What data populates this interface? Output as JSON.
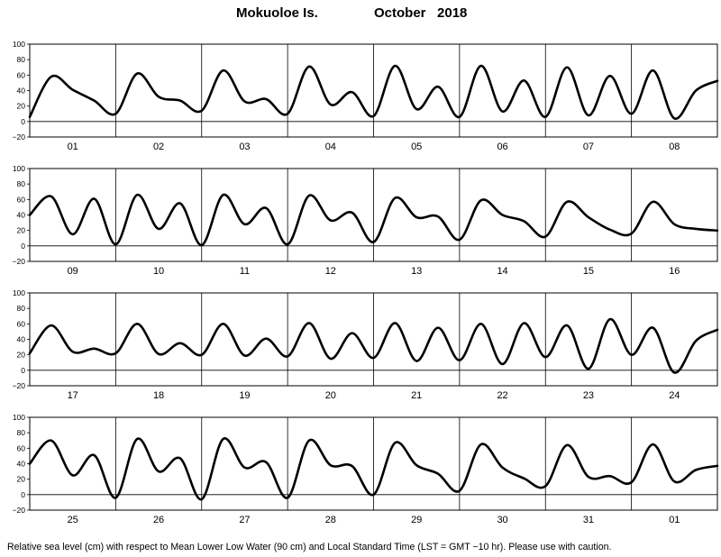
{
  "title": {
    "station": "Mokuoloe Is.",
    "month": "October",
    "year": "2018"
  },
  "footer": "Relative sea level (cm) with respect to Mean Lower Low Water (90 cm) and Local Standard Time (LST = GMT −10 hr). Please use with caution.",
  "chart_data": {
    "type": "line",
    "ylim": [
      -20,
      100
    ],
    "yticks": [
      "100",
      "80",
      "60",
      "40",
      "20",
      "0",
      "−20"
    ],
    "grid": "vertical lines at day boundaries and horizontal line at 0",
    "panels": [
      {
        "days": [
          "01",
          "02",
          "03",
          "04",
          "05",
          "06",
          "07",
          "08"
        ],
        "x_days": [
          0,
          0.25,
          0.5,
          0.75,
          1,
          1.25,
          1.5,
          1.75,
          2,
          2.25,
          2.5,
          2.75,
          3,
          3.25,
          3.5,
          3.75,
          4,
          4.25,
          4.5,
          4.75,
          5,
          5.25,
          5.5,
          5.75,
          6,
          6.25,
          6.5,
          6.75,
          7,
          7.25,
          7.5,
          7.75,
          8
        ],
        "values": [
          6,
          58,
          41,
          27,
          10,
          62,
          32,
          27,
          14,
          66,
          26,
          29,
          10,
          71,
          22,
          38,
          7,
          72,
          16,
          45,
          6,
          72,
          13,
          53,
          6,
          70,
          8,
          59,
          10,
          66,
          4,
          40,
          null
        ]
      },
      {
        "days": [
          "09",
          "10",
          "11",
          "12",
          "13",
          "14",
          "15",
          "16"
        ],
        "x_days": [
          0,
          0.25,
          0.5,
          0.75,
          1,
          1.25,
          1.5,
          1.75,
          2,
          2.25,
          2.5,
          2.75,
          3,
          3.25,
          3.5,
          3.75,
          4,
          4.25,
          4.5,
          4.75,
          5,
          5.25,
          5.5,
          5.75,
          6,
          6.25,
          6.5,
          6.75,
          7,
          7.25,
          7.5,
          7.75,
          8
        ],
        "values": [
          40,
          64,
          15,
          61,
          2,
          66,
          22,
          55,
          1,
          66,
          28,
          49,
          2,
          65,
          33,
          43,
          5,
          62,
          37,
          38,
          8,
          59,
          40,
          32,
          12,
          57,
          37,
          21,
          16,
          57,
          28,
          22,
          null
        ]
      },
      {
        "days": [
          "17",
          "18",
          "19",
          "20",
          "21",
          "22",
          "23",
          "24"
        ],
        "x_days": [
          0,
          0.25,
          0.5,
          0.75,
          1,
          1.25,
          1.5,
          1.75,
          2,
          2.25,
          2.5,
          2.75,
          3,
          3.25,
          3.5,
          3.75,
          4,
          4.25,
          4.5,
          4.75,
          5,
          5.25,
          5.5,
          5.75,
          6,
          6.25,
          6.5,
          6.75,
          7,
          7.25,
          7.5,
          7.75,
          8
        ],
        "values": [
          22,
          58,
          24,
          28,
          22,
          60,
          21,
          35,
          20,
          60,
          19,
          41,
          18,
          61,
          15,
          48,
          16,
          61,
          12,
          55,
          13,
          60,
          8,
          61,
          17,
          58,
          2,
          66,
          20,
          55,
          -3,
          38,
          null
        ]
      },
      {
        "days": [
          "25",
          "26",
          "27",
          "28",
          "29",
          "30",
          "31",
          "01"
        ],
        "x_days": [
          0,
          0.25,
          0.5,
          0.75,
          1,
          1.25,
          1.5,
          1.75,
          2,
          2.25,
          2.5,
          2.75,
          3,
          3.25,
          3.5,
          3.75,
          4,
          4.25,
          4.5,
          4.75,
          5,
          5.25,
          5.5,
          5.75,
          6,
          6.25,
          6.5,
          6.75,
          7,
          7.25,
          7.5,
          7.75,
          8
        ],
        "values": [
          40,
          70,
          25,
          51,
          -4,
          72,
          30,
          47,
          -6,
          72,
          35,
          42,
          -4,
          70,
          38,
          37,
          0,
          67,
          38,
          27,
          5,
          65,
          35,
          21,
          11,
          64,
          23,
          24,
          16,
          65,
          17,
          32,
          null
        ]
      }
    ]
  }
}
